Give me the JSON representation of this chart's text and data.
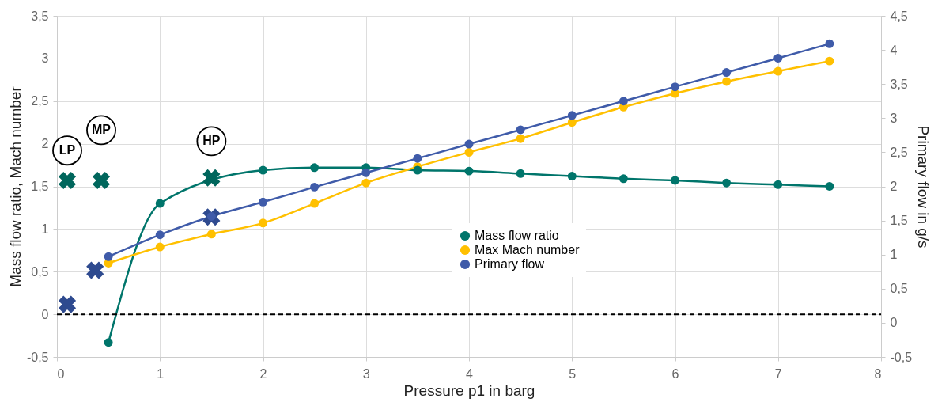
{
  "chart_data": {
    "type": "line",
    "xlabel": "Pressure p1 in barg",
    "ylabel": "Mass flow ratio, Mach number",
    "y2label": "Primary flow in g/s",
    "xlim": [
      0,
      8
    ],
    "xticks": [
      0,
      1,
      2,
      3,
      4,
      5,
      6,
      7,
      8
    ],
    "ylim": [
      -0.5,
      3.5
    ],
    "yticks": [
      {
        "value": -0.5,
        "label": "-0,5"
      },
      0,
      {
        "value": 0.5,
        "label": "0,5"
      },
      1,
      {
        "value": 1.5,
        "label": "1,5"
      },
      2,
      {
        "value": 2.5,
        "label": "2,5"
      },
      3,
      {
        "value": 3.5,
        "label": "3,5"
      }
    ],
    "y2lim": [
      -0.5,
      4.5
    ],
    "y2ticks": [
      {
        "value": -0.5,
        "label": "-0,5"
      },
      0,
      {
        "value": 0.5,
        "label": "0,5"
      },
      1,
      {
        "value": 1.5,
        "label": "1,5"
      },
      2,
      {
        "value": 2.5,
        "label": "2,5"
      },
      3,
      {
        "value": 3.5,
        "label": "3,5"
      },
      4,
      {
        "value": 4.5,
        "label": "4,5"
      }
    ],
    "grid": true,
    "legend": "bottom right",
    "marker": "circle",
    "series": [
      {
        "name": "Mass flow ratio",
        "color": "#00756b",
        "x": [
          0.5,
          1,
          2,
          2.5,
          3,
          3.5,
          4,
          4.5,
          5,
          5.5,
          6,
          6.5,
          7,
          7.5
        ],
        "values": [
          -0.33,
          1.3,
          1.69,
          1.72,
          1.72,
          1.69,
          1.68,
          1.65,
          1.62,
          1.59,
          1.57,
          1.54,
          1.52,
          1.5
        ]
      },
      {
        "name": "Max Mach number",
        "color": "#ffc000",
        "x": [
          0.5,
          1,
          1.5,
          2,
          2.5,
          3,
          3.5,
          4,
          4.5,
          5,
          5.5,
          6,
          6.5,
          7,
          7.5
        ],
        "values": [
          0.6,
          0.79,
          0.94,
          1.07,
          1.3,
          1.54,
          1.73,
          1.9,
          2.06,
          2.25,
          2.43,
          2.59,
          2.73,
          2.85,
          2.97
        ]
      },
      {
        "name": "Primary flow",
        "color": "#3f5ba9",
        "axis": "y2",
        "x": [
          0.5,
          1,
          1.5,
          2,
          2.5,
          3,
          3.5,
          4,
          4.5,
          5,
          5.5,
          6,
          6.5,
          7,
          7.5
        ],
        "values": [
          0.97,
          1.29,
          1.56,
          1.77,
          1.99,
          2.2,
          2.41,
          2.62,
          2.83,
          3.04,
          3.25,
          3.46,
          3.67,
          3.88,
          4.09
        ]
      },
      {
        "type": "scatter",
        "marker": "cross",
        "color": "#00665c",
        "x": [
          0.1,
          0.43,
          1.5
        ],
        "values": [
          1.57,
          1.57,
          1.6
        ]
      },
      {
        "type": "scatter",
        "marker": "cross",
        "color": "#2e4a8f",
        "axis": "y2",
        "x": [
          0.1,
          0.37,
          1.5
        ],
        "values": [
          0.27,
          0.77,
          1.55
        ]
      }
    ],
    "ref_lines": [
      {
        "axis": "y",
        "value": 0,
        "color": "#000000",
        "line_style": "dashed"
      }
    ],
    "annotations": [
      {
        "text": "LP",
        "x": 0.1,
        "y": 1.92
      },
      {
        "text": "MP",
        "x": 0.43,
        "y": 2.16
      },
      {
        "text": "HP",
        "x": 1.5,
        "y": 2.03
      }
    ]
  }
}
